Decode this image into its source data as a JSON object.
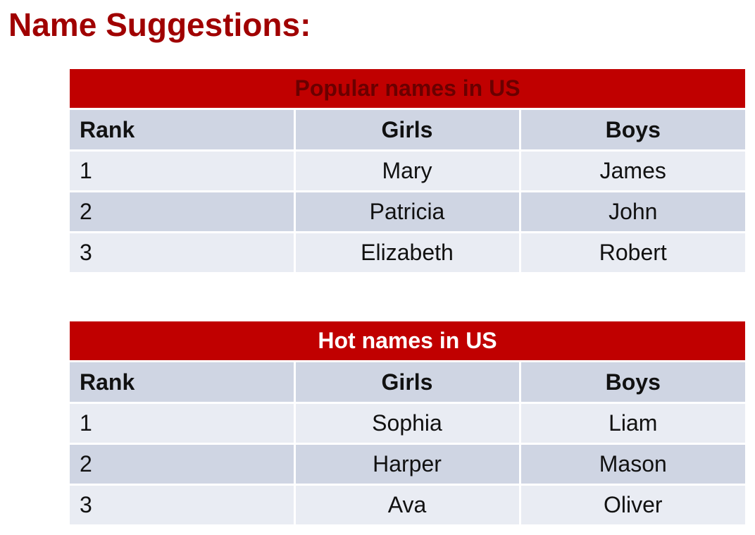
{
  "page": {
    "title": "Name Suggestions:"
  },
  "tables": [
    {
      "caption": "Popular names in US",
      "headers": {
        "rank": "Rank",
        "girls": "Girls",
        "boys": "Boys"
      },
      "rows": [
        {
          "rank": "1",
          "girls": "Mary",
          "boys": "James"
        },
        {
          "rank": "2",
          "girls": "Patricia",
          "boys": "John"
        },
        {
          "rank": "3",
          "girls": "Elizabeth",
          "boys": "Robert"
        }
      ]
    },
    {
      "caption": "Hot names in US",
      "headers": {
        "rank": "Rank",
        "girls": "Girls",
        "boys": "Boys"
      },
      "rows": [
        {
          "rank": "1",
          "girls": "Sophia",
          "boys": "Liam"
        },
        {
          "rank": "2",
          "girls": "Harper",
          "boys": "Mason"
        },
        {
          "rank": "3",
          "girls": "Ava",
          "boys": "Oliver"
        }
      ]
    }
  ],
  "colors": {
    "title": "#a00000",
    "caption_background": "#c00000",
    "header_background": "#cfd5e3",
    "row_light": "#e9ecf3",
    "row_dark": "#cfd5e3"
  }
}
